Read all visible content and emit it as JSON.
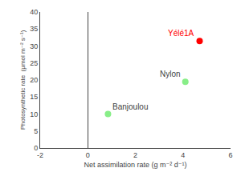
{
  "chart_data": {
    "type": "scatter",
    "x": [
      4.7,
      4.1,
      0.85
    ],
    "values": [
      31.5,
      19.5,
      10.0
    ],
    "colors": [
      "#ff0000",
      "#88ee88",
      "#88ee88"
    ],
    "point_labels": [
      "Yélé1A",
      "Nylon",
      "Banjoulou"
    ],
    "label_colors": [
      "#ff0000",
      "#404040",
      "#404040"
    ],
    "xlabel": "Net assimilation rate (g m⁻² d⁻¹)",
    "ylabel": "Photosynthetic rate  (μmol m⁻² s⁻¹)",
    "xlim": [
      -2,
      6
    ],
    "ylim": [
      0,
      40
    ],
    "xticks": [
      -2,
      0,
      2,
      4,
      6
    ],
    "yticks": [
      0,
      5,
      10,
      15,
      20,
      25,
      30,
      35,
      40
    ],
    "grid": false
  }
}
